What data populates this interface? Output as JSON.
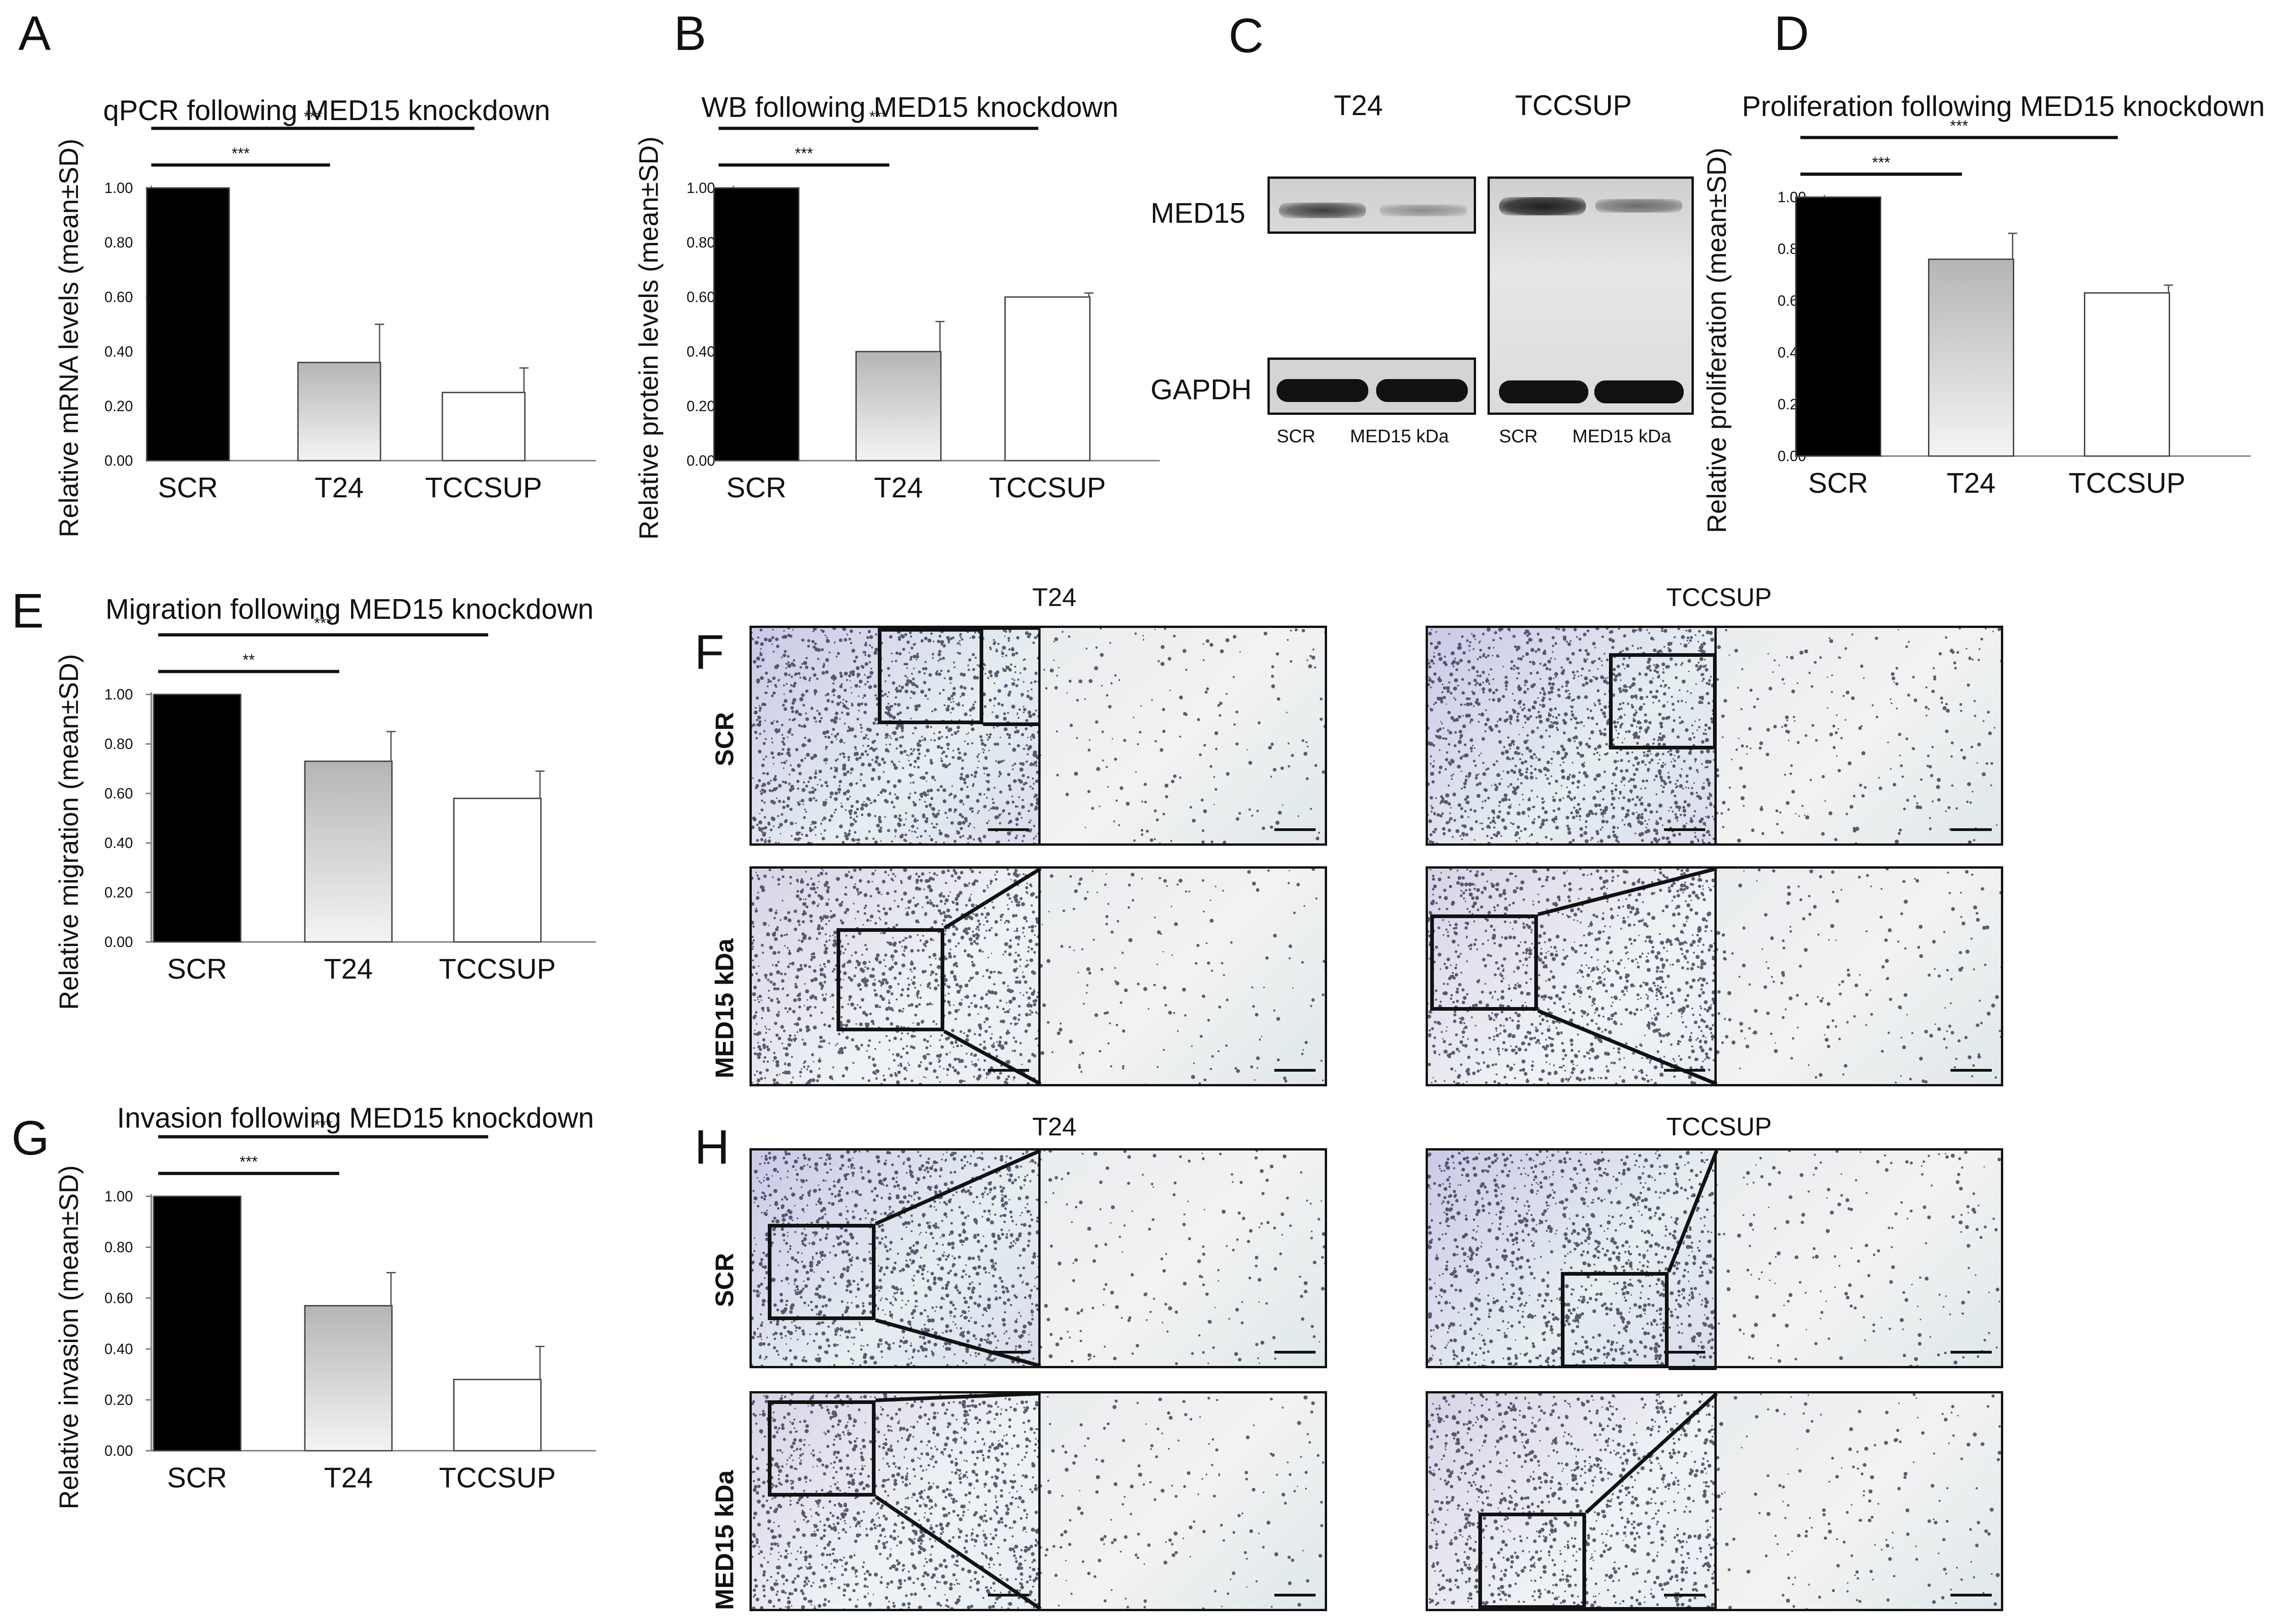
{
  "panel_letters": {
    "a": "A",
    "b": "B",
    "c": "C",
    "d": "D",
    "e": "E",
    "f": "F",
    "g": "G",
    "h": "H"
  },
  "chart_data": [
    {
      "id": "A",
      "type": "bar",
      "title": "qPCR following MED15 knockdown",
      "ylabel": "Relative mRNA levels (mean±SD)",
      "categories": [
        "SCR",
        "T24",
        "TCCSUP"
      ],
      "values": [
        1.0,
        0.36,
        0.25
      ],
      "errors": [
        0.0,
        0.14,
        0.09
      ],
      "ylim": [
        0,
        1.0
      ],
      "yticks": [
        "0.00",
        "0.20",
        "0.40",
        "0.60",
        "0.80",
        "1.00"
      ],
      "significance": [
        {
          "pair": [
            "SCR",
            "T24"
          ],
          "label": "***"
        },
        {
          "pair": [
            "SCR",
            "TCCSUP"
          ],
          "label": "***"
        }
      ]
    },
    {
      "id": "B",
      "type": "bar",
      "title": "WB following MED15 knockdown",
      "ylabel": "Relative protein levels (mean±SD)",
      "categories": [
        "SCR",
        "T24",
        "TCCSUP"
      ],
      "values": [
        1.0,
        0.4,
        0.6
      ],
      "errors": [
        0.0,
        0.11,
        0.015
      ],
      "ylim": [
        0,
        1.0
      ],
      "yticks": [
        "0.00",
        "0.20",
        "0.40",
        "0.60",
        "0.80",
        "1.00"
      ],
      "significance": [
        {
          "pair": [
            "SCR",
            "T24"
          ],
          "label": "***"
        },
        {
          "pair": [
            "SCR",
            "TCCSUP"
          ],
          "label": "***"
        }
      ]
    },
    {
      "id": "D",
      "type": "bar",
      "title": "Proliferation following MED15 knockdown",
      "ylabel": "Relative proliferation (mean±SD)",
      "categories": [
        "SCR",
        "T24",
        "TCCSUP"
      ],
      "values": [
        1.0,
        0.76,
        0.63
      ],
      "errors": [
        0.0,
        0.1,
        0.03
      ],
      "ylim": [
        0,
        1.0
      ],
      "yticks": [
        "0.00",
        "0.20",
        "0.40",
        "0.60",
        "0.80",
        "1.00"
      ],
      "significance": [
        {
          "pair": [
            "SCR",
            "T24"
          ],
          "label": "***"
        },
        {
          "pair": [
            "SCR",
            "TCCSUP"
          ],
          "label": "***"
        }
      ]
    },
    {
      "id": "E",
      "type": "bar",
      "title": "Migration following MED15 knockdown",
      "ylabel": "Relative migration (mean±SD)",
      "categories": [
        "SCR",
        "T24",
        "TCCSUP"
      ],
      "values": [
        1.0,
        0.73,
        0.58
      ],
      "errors": [
        0.0,
        0.12,
        0.11
      ],
      "ylim": [
        0,
        1.0
      ],
      "yticks": [
        "0.00",
        "0.20",
        "0.40",
        "0.60",
        "0.80",
        "1.00"
      ],
      "significance": [
        {
          "pair": [
            "SCR",
            "T24"
          ],
          "label": "**"
        },
        {
          "pair": [
            "SCR",
            "TCCSUP"
          ],
          "label": "***"
        }
      ]
    },
    {
      "id": "G",
      "type": "bar",
      "title": "Invasion following MED15 knockdown",
      "ylabel": "Relative invasion (mean±SD)",
      "categories": [
        "SCR",
        "T24",
        "TCCSUP"
      ],
      "values": [
        1.0,
        0.57,
        0.28
      ],
      "errors": [
        0.0,
        0.13,
        0.13
      ],
      "ylim": [
        0,
        1.0
      ],
      "yticks": [
        "0.00",
        "0.20",
        "0.40",
        "0.60",
        "0.80",
        "1.00"
      ],
      "significance": [
        {
          "pair": [
            "SCR",
            "T24"
          ],
          "label": "***"
        },
        {
          "pair": [
            "SCR",
            "TCCSUP"
          ],
          "label": "***"
        }
      ]
    }
  ],
  "western_blot": {
    "cell_lines": [
      "T24",
      "TCCSUP"
    ],
    "proteins": [
      "MED15",
      "GAPDH"
    ],
    "lanes": [
      "SCR",
      "MED15 kDa",
      "SCR",
      "MED15 kDa"
    ]
  },
  "microscopy": {
    "column_titles": [
      "T24",
      "TCCSUP"
    ],
    "row_labels": [
      "SCR",
      "MED15 kDa"
    ]
  },
  "colors": {
    "scr_bar": "#000000",
    "t24_gradient_top": "#b5b5b5",
    "t24_gradient_bottom": "#f4f4f4",
    "tccsup_bar": "#ffffff"
  }
}
